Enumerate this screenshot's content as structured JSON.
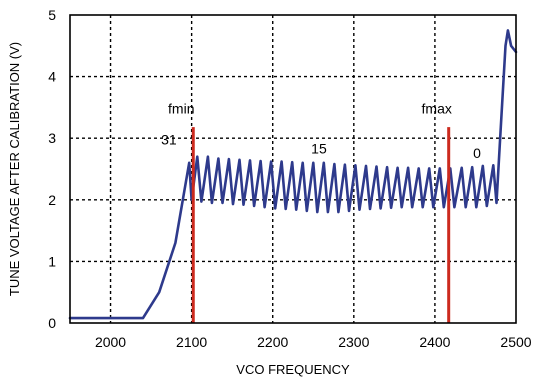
{
  "chart_data": {
    "type": "line",
    "title": "",
    "xlabel": "VCO FREQUENCY",
    "ylabel": "TUNE VOLTAGE AFTER CALIBRATION (V)",
    "xlim": [
      1950,
      2500
    ],
    "ylim": [
      0,
      5
    ],
    "x_ticks": [
      "2000",
      "2100",
      "2200",
      "2300",
      "2400",
      "2500"
    ],
    "y_ticks": [
      "0",
      "1",
      "2",
      "3",
      "4",
      "5"
    ],
    "grid": true,
    "series": [
      {
        "color": "#2e3a8c",
        "points": [
          [
            1950,
            0.08
          ],
          [
            2040,
            0.08
          ],
          [
            2060,
            0.5
          ],
          [
            2080,
            1.3
          ],
          [
            2093,
            2.3
          ],
          [
            2097,
            2.6
          ],
          [
            2100,
            2.0
          ],
          [
            2107,
            2.7
          ],
          [
            2112,
            1.97
          ],
          [
            2120,
            2.7
          ],
          [
            2125,
            1.95
          ],
          [
            2133,
            2.67
          ],
          [
            2138,
            1.95
          ],
          [
            2146,
            2.66
          ],
          [
            2151,
            1.93
          ],
          [
            2159,
            2.65
          ],
          [
            2164,
            1.92
          ],
          [
            2172,
            2.64
          ],
          [
            2177,
            1.9
          ],
          [
            2185,
            2.63
          ],
          [
            2190,
            1.88
          ],
          [
            2198,
            2.62
          ],
          [
            2203,
            1.86
          ],
          [
            2211,
            2.62
          ],
          [
            2216,
            1.85
          ],
          [
            2224,
            2.61
          ],
          [
            2229,
            1.84
          ],
          [
            2237,
            2.6
          ],
          [
            2242,
            1.82
          ],
          [
            2250,
            2.6
          ],
          [
            2255,
            1.8
          ],
          [
            2263,
            2.6
          ],
          [
            2268,
            1.8
          ],
          [
            2276,
            2.58
          ],
          [
            2281,
            1.8
          ],
          [
            2289,
            2.57
          ],
          [
            2294,
            1.82
          ],
          [
            2302,
            2.56
          ],
          [
            2307,
            1.84
          ],
          [
            2315,
            2.55
          ],
          [
            2320,
            1.85
          ],
          [
            2328,
            2.54
          ],
          [
            2333,
            1.86
          ],
          [
            2341,
            2.53
          ],
          [
            2346,
            1.87
          ],
          [
            2354,
            2.52
          ],
          [
            2359,
            1.88
          ],
          [
            2367,
            2.52
          ],
          [
            2372,
            1.88
          ],
          [
            2380,
            2.51
          ],
          [
            2385,
            1.88
          ],
          [
            2393,
            2.51
          ],
          [
            2398,
            1.88
          ],
          [
            2406,
            2.51
          ],
          [
            2411,
            1.88
          ],
          [
            2419,
            2.51
          ],
          [
            2424,
            1.88
          ],
          [
            2433,
            2.52
          ],
          [
            2438,
            1.88
          ],
          [
            2446,
            2.53
          ],
          [
            2451,
            1.88
          ],
          [
            2459,
            2.55
          ],
          [
            2464,
            1.9
          ],
          [
            2472,
            2.56
          ],
          [
            2476,
            1.95
          ],
          [
            2480,
            2.9
          ],
          [
            2484,
            3.8
          ],
          [
            2487,
            4.5
          ],
          [
            2490,
            4.75
          ],
          [
            2494,
            4.5
          ],
          [
            2500,
            4.4
          ]
        ]
      }
    ],
    "vertical_markers": [
      {
        "label": "fmin",
        "x": 2102,
        "color": "#cc2a1e"
      },
      {
        "label": "fmax",
        "x": 2417,
        "color": "#cc2a1e"
      }
    ],
    "annotations": [
      {
        "text": "31",
        "x": 2072,
        "y": 2.9
      },
      {
        "text": "15",
        "x": 2257,
        "y": 2.75
      },
      {
        "text": "0",
        "x": 2452,
        "y": 2.68
      }
    ]
  }
}
